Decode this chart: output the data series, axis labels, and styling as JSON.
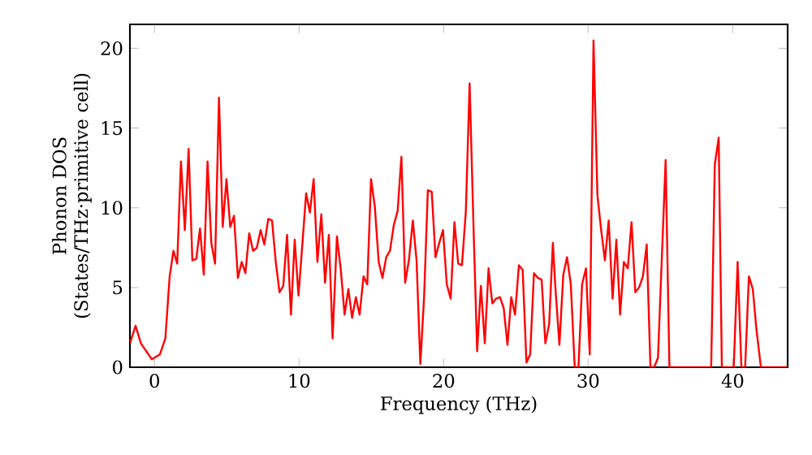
{
  "chart_data": {
    "type": "line",
    "xlabel": "Frequency (THz)",
    "ylabel": "Phonon DOS (States/THz·primitive cell)",
    "x": [
      -1.7,
      -1.31,
      -0.94,
      -0.19,
      0.37,
      0.75,
      1.05,
      1.31,
      1.57,
      1.83,
      2.1,
      2.36,
      2.62,
      2.89,
      3.15,
      3.41,
      3.67,
      3.93,
      4.19,
      4.46,
      4.72,
      4.98,
      5.24,
      5.5,
      5.77,
      6.03,
      6.29,
      6.55,
      6.82,
      7.08,
      7.34,
      7.6,
      7.87,
      8.13,
      8.39,
      8.65,
      8.91,
      9.17,
      9.44,
      9.7,
      9.96,
      10.22,
      10.49,
      10.75,
      11.01,
      11.27,
      11.54,
      11.8,
      12.06,
      12.32,
      12.62,
      12.89,
      13.15,
      13.41,
      13.67,
      13.93,
      14.19,
      14.46,
      14.72,
      14.98,
      15.24,
      15.51,
      15.77,
      16.03,
      16.29,
      16.55,
      16.82,
      17.08,
      17.34,
      17.6,
      17.87,
      18.13,
      18.39,
      18.65,
      18.91,
      19.18,
      19.44,
      19.7,
      19.96,
      20.22,
      20.49,
      20.75,
      21.01,
      21.27,
      21.54,
      21.8,
      22.06,
      22.32,
      22.58,
      22.85,
      23.11,
      23.37,
      23.63,
      23.9,
      24.16,
      24.42,
      24.68,
      24.94,
      25.21,
      25.47,
      25.73,
      25.99,
      26.25,
      26.52,
      26.78,
      27.04,
      27.3,
      27.56,
      27.72,
      28.01,
      28.28,
      28.54,
      28.8,
      29.07,
      29.33,
      29.58,
      29.85,
      30.11,
      30.37,
      30.64,
      30.9,
      31.16,
      31.42,
      31.69,
      31.95,
      32.21,
      32.47,
      32.74,
      33.0,
      33.26,
      33.52,
      33.79,
      34.05,
      34.31,
      34.57,
      34.83,
      35.09,
      35.36,
      35.62,
      38.51,
      38.76,
      39.03,
      39.25,
      40.07,
      40.34,
      40.6,
      40.86,
      41.12,
      41.39,
      41.65,
      41.95,
      43.8
    ],
    "series": [
      {
        "color": "#ff0000",
        "values": [
          1.5,
          2.6,
          1.5,
          0.5,
          0.8,
          1.8,
          5.7,
          7.3,
          6.5,
          12.9,
          8.6,
          13.7,
          6.7,
          6.8,
          8.7,
          5.8,
          12.9,
          7.8,
          6.5,
          16.9,
          8.8,
          11.8,
          8.8,
          9.5,
          5.6,
          6.6,
          5.9,
          8.4,
          7.3,
          7.5,
          8.6,
          7.7,
          9.3,
          9.2,
          6.6,
          4.7,
          5.1,
          8.3,
          3.3,
          8.0,
          4.5,
          7.6,
          10.9,
          9.7,
          11.8,
          6.6,
          9.6,
          5.3,
          8.3,
          1.8,
          8.2,
          6.1,
          3.3,
          4.9,
          3.1,
          4.4,
          3.3,
          5.7,
          5.2,
          11.8,
          10.1,
          6.6,
          5.6,
          6.9,
          7.3,
          8.9,
          9.8,
          13.2,
          5.3,
          6.7,
          9.2,
          6.7,
          0.2,
          4.4,
          11.1,
          11.0,
          6.9,
          7.8,
          8.6,
          5.2,
          4.3,
          9.1,
          6.5,
          6.4,
          9.8,
          17.8,
          9.1,
          1.0,
          5.1,
          1.5,
          6.2,
          4.0,
          4.3,
          4.4,
          3.7,
          1.4,
          4.4,
          3.3,
          6.4,
          6.1,
          0.3,
          0.8,
          5.9,
          5.6,
          5.5,
          1.5,
          2.7,
          7.8,
          5.2,
          1.4,
          5.8,
          6.9,
          5.2,
          0,
          0,
          5.2,
          6.2,
          0.8,
          20.5,
          10.8,
          8.6,
          6.7,
          9.2,
          4.3,
          8.0,
          3.3,
          6.6,
          6.2,
          9.1,
          4.7,
          5.0,
          5.7,
          7.7,
          0,
          0,
          0.6,
          6.7,
          13.0,
          0,
          0,
          12.7,
          14.4,
          0,
          0,
          6.6,
          0,
          0,
          5.7,
          4.9,
          2.3,
          0,
          0
        ]
      }
    ],
    "xlim": [
      -1.7,
      43.8
    ],
    "ylim": [
      0,
      21.5
    ],
    "xticks": [
      0,
      10,
      20,
      30,
      40
    ],
    "yticks": [
      0,
      5,
      10,
      15,
      20
    ],
    "marker": "none",
    "line_style": "solid"
  }
}
